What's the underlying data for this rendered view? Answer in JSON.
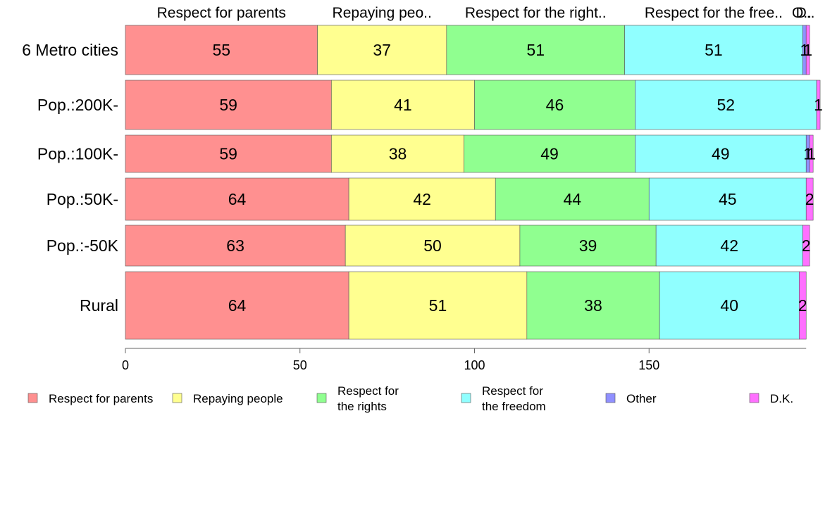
{
  "chart_data": {
    "type": "bar",
    "orientation": "horizontal",
    "stacked": true,
    "bar_width_varies": true,
    "categories": [
      "6 Metro cities",
      "Pop.:200K-",
      "Pop.:100K-",
      "Pop.:50K-",
      "Pop.:-50K",
      "Rural"
    ],
    "top_labels": [
      "Respect for parents",
      "Repaying peo..",
      "Respect for the right..",
      "Respect for the free..",
      "O..",
      "D.."
    ],
    "series": [
      {
        "name": "Respect for parents",
        "color": "#ff9090",
        "values": [
          55,
          59,
          59,
          64,
          63,
          64
        ],
        "labels": [
          "55",
          "59",
          "59",
          "64",
          "63",
          "64"
        ]
      },
      {
        "name": "Repaying people",
        "color": "#ffff90",
        "values": [
          37,
          41,
          38,
          42,
          50,
          51
        ],
        "labels": [
          "37",
          "41",
          "38",
          "42",
          "50",
          "51"
        ]
      },
      {
        "name": "Respect for the rights",
        "color": "#90ff90",
        "values": [
          51,
          46,
          49,
          44,
          39,
          38
        ],
        "labels": [
          "51",
          "46",
          "49",
          "44",
          "39",
          "38"
        ]
      },
      {
        "name": "Respect for the freedom",
        "color": "#90ffff",
        "values": [
          51,
          52,
          49,
          45,
          42,
          40
        ],
        "labels": [
          "51",
          "52",
          "49",
          "45",
          "42",
          "40"
        ]
      },
      {
        "name": "Other",
        "color": "#9090ff",
        "values": [
          1,
          0,
          1,
          0,
          0,
          0
        ],
        "labels": [
          "1",
          "",
          "1",
          "",
          "",
          ""
        ]
      },
      {
        "name": "D.K.",
        "color": "#ff70ff",
        "values": [
          1,
          1,
          1,
          2,
          2,
          2
        ],
        "labels": [
          "1",
          "1",
          "1",
          "2",
          "2",
          "2"
        ]
      }
    ],
    "legend": [
      {
        "line1": "Respect for parents",
        "line2": ""
      },
      {
        "line1": "Repaying people",
        "line2": ""
      },
      {
        "line1": "Respect for",
        "line2": "the rights"
      },
      {
        "line1": "Respect for",
        "line2": "the freedom"
      },
      {
        "line1": "Other",
        "line2": ""
      },
      {
        "line1": "D.K.",
        "line2": ""
      }
    ],
    "xlim": [
      0,
      195
    ],
    "xticks": [
      0,
      50,
      100,
      150
    ],
    "legend_position": "bottom",
    "grid": false
  }
}
